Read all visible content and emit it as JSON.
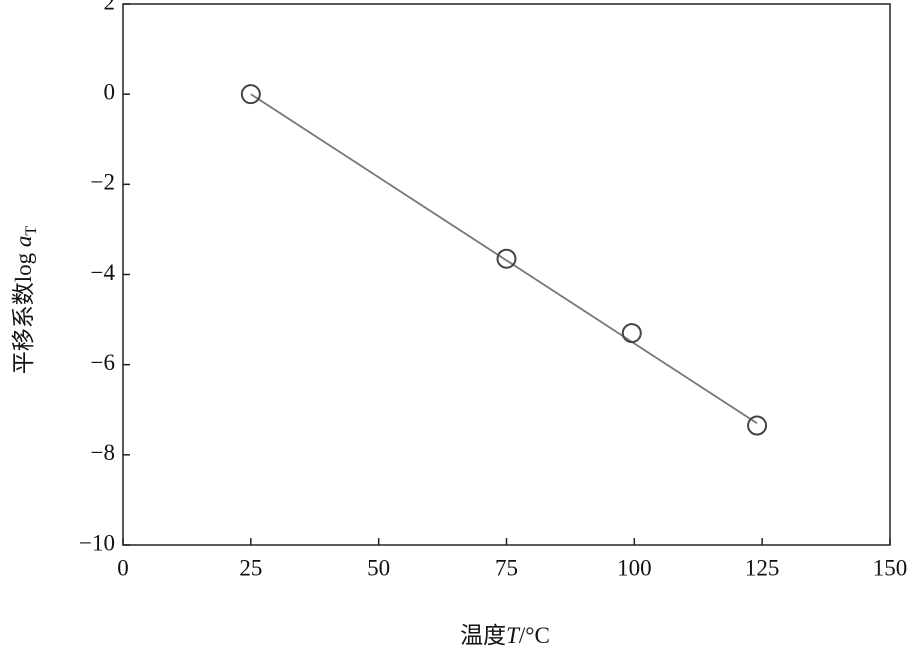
{
  "chart_data": {
    "type": "scatter",
    "x": [
      25,
      75,
      99.5,
      124
    ],
    "values": [
      0,
      -3.65,
      -5.3,
      -7.35
    ],
    "color": "#444444",
    "fit_line": {
      "x": [
        25,
        124
      ],
      "values": [
        0,
        -7.3
      ],
      "color": "#777777"
    },
    "xlabel_parts": [
      "温度",
      "T",
      "/°C"
    ],
    "ylabel_parts": [
      "平移系数log ",
      "a",
      "T"
    ],
    "xlim": [
      0,
      150
    ],
    "xticks": [
      0,
      25,
      50,
      75,
      100,
      125,
      150
    ],
    "ylim": [
      -10,
      2
    ],
    "yticks": [
      {
        "value": -10,
        "label": "−10"
      },
      {
        "value": -8,
        "label": "−8"
      },
      {
        "value": -6,
        "label": "−6"
      },
      {
        "value": -4,
        "label": "−4"
      },
      {
        "value": -2,
        "label": "−2"
      },
      0,
      2
    ],
    "grid": false
  }
}
